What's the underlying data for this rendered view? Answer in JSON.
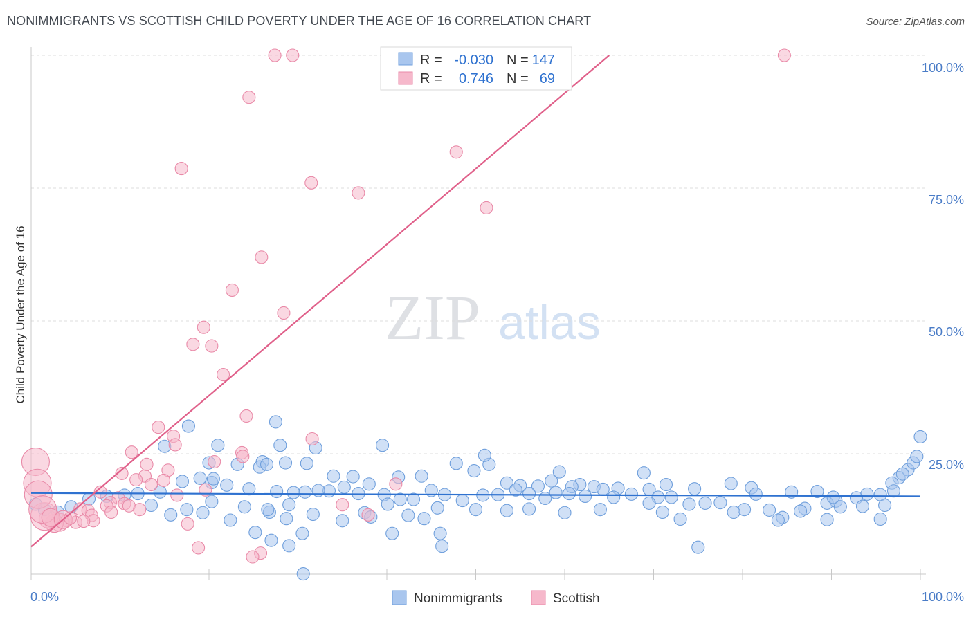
{
  "header": {
    "title": "NONIMMIGRANTS VS SCOTTISH CHILD POVERTY UNDER THE AGE OF 16 CORRELATION CHART",
    "source": "Source: ZipAtlas.com"
  },
  "watermark": {
    "zip": "ZIP",
    "atlas": "atlas"
  },
  "legend": {
    "rows": [
      {
        "r_label": "R =",
        "r_value": "-0.030",
        "n_label": "N =",
        "n_value": "147"
      },
      {
        "r_label": "R =",
        "r_value": "0.746",
        "n_label": "N =",
        "n_value": "69"
      }
    ]
  },
  "bottom_legend": {
    "items": [
      "Nonimmigrants",
      "Scottish"
    ]
  },
  "colors": {
    "blue_fill": "#a9c6ee",
    "blue_stroke": "#6f9fdc",
    "blue_line": "#2f72d0",
    "pink_fill": "#f6b8cb",
    "pink_stroke": "#e98aa8",
    "pink_line": "#e0608a",
    "tick_text": "#4a7cc7"
  },
  "chart_data": {
    "type": "scatter",
    "title": "NONIMMIGRANTS VS SCOTTISH CHILD POVERTY UNDER THE AGE OF 16 CORRELATION CHART",
    "xlabel": "",
    "ylabel": "Child Poverty Under the Age of 16",
    "xlim": [
      0,
      100
    ],
    "ylim": [
      0,
      100
    ],
    "x_tick_labels": [
      "0.0%",
      "100.0%"
    ],
    "y_tick_labels": [
      "100.0%",
      "75.0%",
      "50.0%",
      "25.0%"
    ],
    "y_ticks": [
      100,
      75,
      50,
      25
    ],
    "grid": true,
    "legend_position": "top-center",
    "series": [
      {
        "name": "Nonimmigrants",
        "R": -0.03,
        "N": 147,
        "trend": {
          "x": [
            0,
            100
          ],
          "y": [
            17.6,
            17.0
          ]
        },
        "points": [
          [
            17.7,
            30.2
          ],
          [
            27.5,
            31.0
          ],
          [
            21.0,
            26.6
          ],
          [
            28.0,
            26.6
          ],
          [
            39.5,
            26.6
          ],
          [
            15.0,
            26.4
          ],
          [
            32.0,
            26.1
          ],
          [
            26.0,
            23.5
          ],
          [
            25.7,
            22.5
          ],
          [
            31.0,
            23.2
          ],
          [
            26.5,
            23.0
          ],
          [
            23.2,
            23.0
          ],
          [
            20.0,
            23.3
          ],
          [
            28.6,
            23.3
          ],
          [
            47.8,
            23.2
          ],
          [
            51.5,
            23.0
          ],
          [
            51.0,
            24.7
          ],
          [
            59.4,
            21.6
          ],
          [
            68.9,
            21.4
          ],
          [
            71.4,
            19.2
          ],
          [
            20.3,
            19.6
          ],
          [
            34.0,
            20.8
          ],
          [
            43.9,
            20.8
          ],
          [
            36.2,
            20.7
          ],
          [
            49.8,
            21.8
          ],
          [
            41.3,
            20.6
          ],
          [
            53.5,
            19.5
          ],
          [
            55.0,
            19.0
          ],
          [
            58.5,
            19.9
          ],
          [
            61.7,
            19.2
          ],
          [
            54.5,
            18.2
          ],
          [
            57.0,
            18.9
          ],
          [
            60.8,
            18.8
          ],
          [
            63.3,
            18.8
          ],
          [
            66.0,
            18.5
          ],
          [
            69.5,
            18.3
          ],
          [
            74.6,
            18.4
          ],
          [
            78.7,
            19.4
          ],
          [
            81.0,
            18.6
          ],
          [
            88.4,
            17.9
          ],
          [
            94.0,
            17.4
          ],
          [
            97.6,
            20.5
          ],
          [
            98.6,
            22.0
          ],
          [
            99.2,
            23.3
          ],
          [
            99.6,
            24.5
          ],
          [
            100.0,
            28.2
          ],
          [
            98.0,
            21.2
          ],
          [
            96.8,
            19.5
          ],
          [
            95.5,
            17.3
          ],
          [
            92.8,
            16.7
          ],
          [
            90.5,
            16.1
          ],
          [
            89.5,
            15.7
          ],
          [
            87.0,
            14.7
          ],
          [
            85.5,
            17.8
          ],
          [
            84.5,
            13.0
          ],
          [
            81.5,
            17.4
          ],
          [
            80.2,
            14.5
          ],
          [
            77.5,
            15.8
          ],
          [
            75.8,
            15.7
          ],
          [
            74.0,
            15.5
          ],
          [
            72.0,
            16.8
          ],
          [
            70.5,
            16.8
          ],
          [
            69.5,
            15.7
          ],
          [
            67.5,
            17.4
          ],
          [
            65.5,
            16.8
          ],
          [
            64.3,
            18.3
          ],
          [
            62.3,
            17.0
          ],
          [
            60.5,
            17.5
          ],
          [
            59.0,
            17.7
          ],
          [
            57.8,
            16.6
          ],
          [
            56.0,
            17.5
          ],
          [
            52.5,
            17.3
          ],
          [
            50.8,
            17.2
          ],
          [
            48.5,
            16.2
          ],
          [
            46.5,
            17.3
          ],
          [
            45.0,
            18.1
          ],
          [
            43.0,
            16.4
          ],
          [
            41.5,
            16.4
          ],
          [
            39.7,
            17.3
          ],
          [
            38.0,
            19.3
          ],
          [
            36.8,
            17.5
          ],
          [
            35.2,
            18.7
          ],
          [
            33.5,
            18.0
          ],
          [
            32.3,
            18.1
          ],
          [
            30.8,
            17.8
          ],
          [
            29.5,
            17.7
          ],
          [
            27.6,
            17.9
          ],
          [
            24.5,
            18.4
          ],
          [
            22.0,
            19.1
          ],
          [
            20.5,
            20.3
          ],
          [
            19.0,
            20.4
          ],
          [
            17.0,
            19.8
          ],
          [
            14.5,
            17.8
          ],
          [
            12.0,
            17.5
          ],
          [
            10.5,
            17.2
          ],
          [
            8.5,
            17.0
          ],
          [
            6.5,
            16.5
          ],
          [
            4.5,
            15.0
          ],
          [
            3.0,
            14.0
          ],
          [
            1.5,
            14.5
          ],
          [
            0.5,
            15.5
          ],
          [
            20.3,
            16.0
          ],
          [
            13.5,
            15.3
          ],
          [
            17.5,
            14.5
          ],
          [
            24.0,
            15.0
          ],
          [
            26.8,
            14.0
          ],
          [
            29.0,
            15.4
          ],
          [
            37.5,
            13.9
          ],
          [
            40.1,
            15.5
          ],
          [
            42.4,
            13.4
          ],
          [
            45.7,
            14.8
          ],
          [
            50.0,
            14.5
          ],
          [
            53.5,
            14.3
          ],
          [
            56.0,
            14.6
          ],
          [
            60.0,
            13.9
          ],
          [
            64.0,
            14.5
          ],
          [
            71.0,
            14.0
          ],
          [
            79.0,
            14.0
          ],
          [
            83.0,
            14.4
          ],
          [
            86.5,
            14.2
          ],
          [
            91.0,
            15.0
          ],
          [
            93.5,
            15.1
          ],
          [
            96.0,
            15.3
          ],
          [
            15.7,
            13.5
          ],
          [
            19.3,
            13.9
          ],
          [
            26.6,
            14.5
          ],
          [
            31.7,
            13.6
          ],
          [
            38.2,
            13.1
          ],
          [
            44.2,
            12.8
          ],
          [
            22.4,
            12.5
          ],
          [
            28.7,
            12.8
          ],
          [
            35.0,
            12.4
          ],
          [
            73.0,
            12.7
          ],
          [
            84.0,
            12.5
          ],
          [
            89.5,
            12.6
          ],
          [
            95.5,
            12.7
          ],
          [
            25.2,
            10.2
          ],
          [
            30.5,
            10.0
          ],
          [
            40.6,
            10.0
          ],
          [
            27.0,
            8.7
          ],
          [
            29.0,
            7.7
          ],
          [
            46.2,
            7.6
          ],
          [
            75.0,
            7.4
          ],
          [
            30.6,
            2.4
          ],
          [
            46.0,
            10.0
          ],
          [
            90.2,
            16.8
          ],
          [
            97.0,
            18.0
          ]
        ]
      },
      {
        "name": "Scottish",
        "R": 0.746,
        "N": 69,
        "trend": {
          "x": [
            0,
            65
          ],
          "y": [
            7.5,
            100
          ]
        },
        "points": [
          [
            27.4,
            100
          ],
          [
            29.4,
            100
          ],
          [
            44.8,
            100
          ],
          [
            47.3,
            100
          ],
          [
            84.7,
            100
          ],
          [
            24.5,
            92.1
          ],
          [
            47.8,
            81.8
          ],
          [
            16.9,
            78.7
          ],
          [
            31.5,
            76.0
          ],
          [
            36.8,
            74.1
          ],
          [
            51.2,
            71.3
          ],
          [
            25.9,
            62.0
          ],
          [
            22.6,
            55.8
          ],
          [
            28.4,
            51.5
          ],
          [
            19.4,
            48.8
          ],
          [
            18.2,
            45.6
          ],
          [
            20.3,
            45.3
          ],
          [
            21.6,
            39.9
          ],
          [
            24.2,
            32.1
          ],
          [
            14.3,
            30.0
          ],
          [
            31.6,
            27.8
          ],
          [
            16.0,
            28.3
          ],
          [
            16.2,
            26.7
          ],
          [
            11.3,
            25.3
          ],
          [
            23.7,
            25.2
          ],
          [
            23.8,
            24.5
          ],
          [
            20.6,
            23.5
          ],
          [
            10.2,
            21.3
          ],
          [
            15.4,
            21.9
          ],
          [
            12.8,
            20.8
          ],
          [
            14.9,
            20.0
          ],
          [
            11.8,
            20.1
          ],
          [
            13.5,
            19.2
          ],
          [
            41.0,
            19.3
          ],
          [
            19.6,
            18.2
          ],
          [
            7.8,
            17.8
          ],
          [
            16.4,
            17.2
          ],
          [
            9.8,
            16.7
          ],
          [
            8.9,
            15.8
          ],
          [
            10.5,
            15.6
          ],
          [
            8.5,
            15.2
          ],
          [
            11.0,
            15.2
          ],
          [
            12.2,
            14.5
          ],
          [
            5.5,
            14.6
          ],
          [
            6.4,
            14.3
          ],
          [
            35.0,
            15.4
          ],
          [
            6.8,
            13.4
          ],
          [
            7.0,
            12.4
          ],
          [
            5.0,
            12.1
          ],
          [
            4.0,
            12.4
          ],
          [
            3.2,
            12.1
          ],
          [
            2.6,
            11.9
          ],
          [
            1.9,
            12.7
          ],
          [
            1.5,
            13.2
          ],
          [
            17.6,
            11.8
          ],
          [
            37.9,
            13.5
          ],
          [
            18.8,
            7.3
          ],
          [
            25.8,
            6.3
          ],
          [
            24.9,
            5.6
          ],
          [
            0.5,
            23.5
          ],
          [
            0.7,
            19.5
          ],
          [
            0.8,
            17.3
          ],
          [
            1.3,
            14.5
          ],
          [
            2.2,
            13.0
          ],
          [
            3.6,
            12.6
          ],
          [
            4.4,
            12.9
          ],
          [
            5.9,
            12.3
          ],
          [
            9.0,
            14.0
          ],
          [
            13.0,
            23.0
          ]
        ]
      }
    ]
  }
}
